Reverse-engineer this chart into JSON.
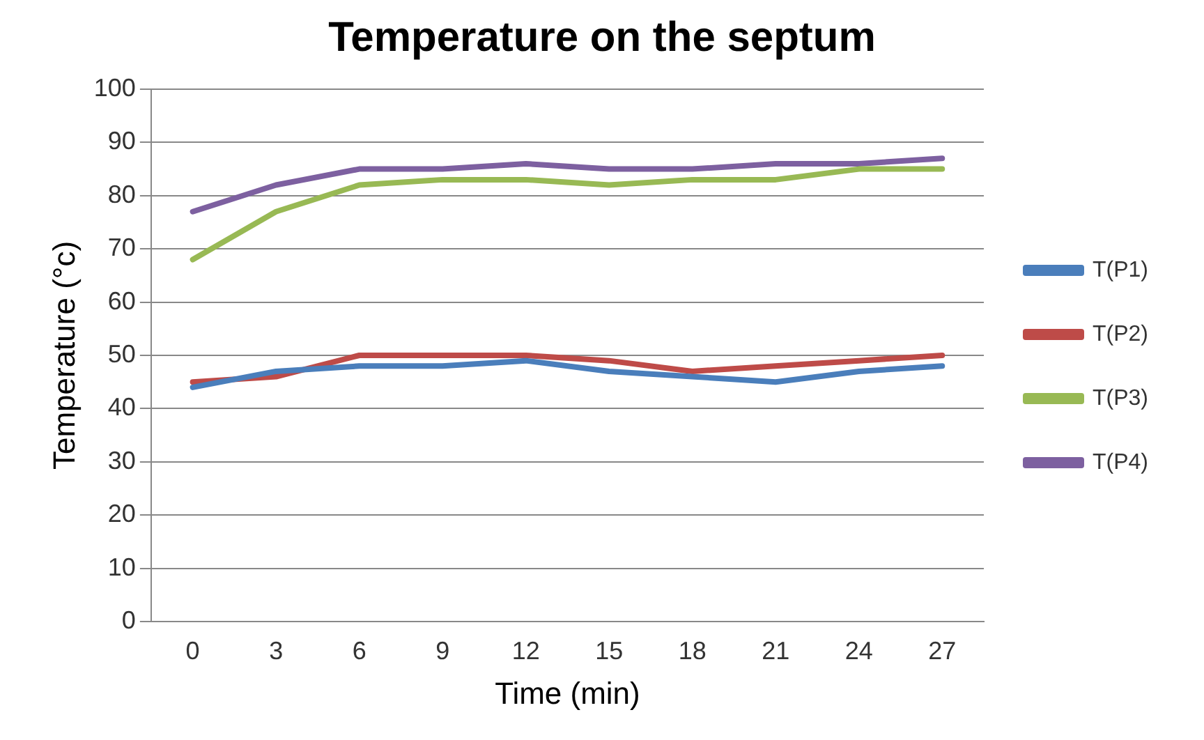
{
  "chart_data": {
    "type": "line",
    "title": "Temperature on the septum",
    "xlabel": "Time (min)",
    "ylabel": "Temperature (°c)",
    "categories": [
      "0",
      "3",
      "6",
      "9",
      "12",
      "15",
      "18",
      "21",
      "24",
      "27"
    ],
    "series": [
      {
        "name": "T(P1)",
        "color": "#4a7ebb",
        "values": [
          44,
          47,
          48,
          48,
          49,
          47,
          46,
          45,
          47,
          48
        ]
      },
      {
        "name": "T(P2)",
        "color": "#be4b48",
        "values": [
          45,
          46,
          50,
          50,
          50,
          49,
          47,
          48,
          49,
          50
        ]
      },
      {
        "name": "T(P3)",
        "color": "#98b954",
        "values": [
          68,
          77,
          82,
          83,
          83,
          82,
          83,
          83,
          85,
          85
        ]
      },
      {
        "name": "T(P4)",
        "color": "#7d60a0",
        "values": [
          77,
          82,
          85,
          85,
          86,
          85,
          85,
          86,
          86,
          87
        ]
      }
    ],
    "ylim": [
      0,
      100
    ],
    "yticks": [
      0,
      10,
      20,
      30,
      40,
      50,
      60,
      70,
      80,
      90,
      100
    ],
    "grid": "y",
    "legend": "right",
    "marker": "none",
    "line_style": "solid"
  }
}
